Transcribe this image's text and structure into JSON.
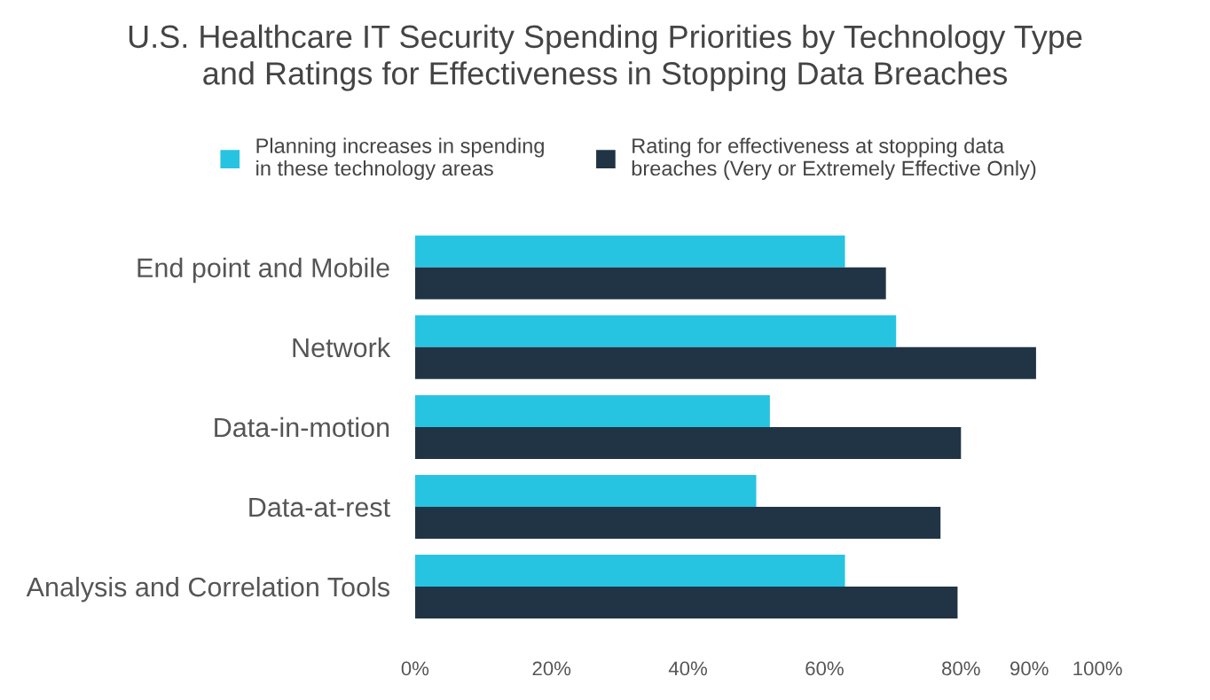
{
  "chart_data": {
    "type": "bar",
    "orientation": "horizontal",
    "title": "U.S. Healthcare IT Security Spending Priorities by Technology Type\nand Ratings for Effectiveness in Stopping Data Breaches",
    "categories": [
      "End point and Mobile",
      "Network",
      "Data-in-motion",
      "Data-at-rest",
      "Analysis and Correlation Tools"
    ],
    "series": [
      {
        "name": "Planning increases in spending\nin these technology areas",
        "color": "#27c4e2",
        "values": [
          63,
          70.5,
          52,
          50,
          63
        ]
      },
      {
        "name": "Rating for effectiveness at stopping data\nbreaches (Very or Extremely Effective Only)",
        "color": "#213445",
        "values": [
          69,
          91,
          80,
          77,
          79.5
        ]
      }
    ],
    "xlim": [
      0,
      100
    ],
    "xticks": [
      {
        "value": 0,
        "label": "0%"
      },
      {
        "value": 20,
        "label": "20%"
      },
      {
        "value": 40,
        "label": "40%"
      },
      {
        "value": 60,
        "label": "60%"
      },
      {
        "value": 80,
        "label": "80%"
      },
      {
        "value": 90,
        "label": "90%"
      },
      {
        "value": 100,
        "label": "100%"
      }
    ],
    "grid": false,
    "legend": "top"
  }
}
